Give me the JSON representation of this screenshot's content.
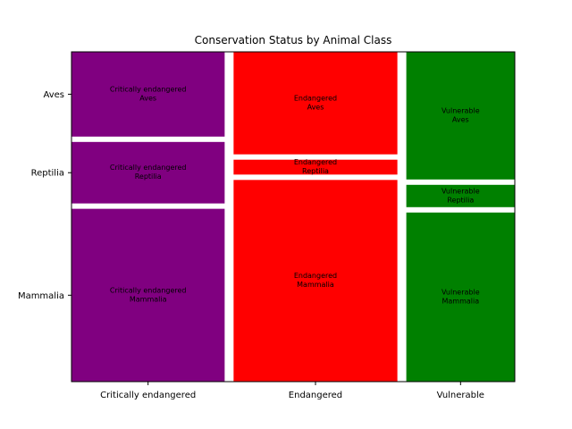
{
  "chart_data": {
    "type": "mosaic",
    "title": "Conservation Status by Animal Class",
    "xlabel": "",
    "ylabel": "",
    "x_categories": [
      "Critically endangered",
      "Endangered",
      "Vulnerable"
    ],
    "y_categories": [
      "Mammalia",
      "Reptilia",
      "Aves"
    ],
    "y_tick_labels": [
      "Aves",
      "Reptilia",
      "Mammalia"
    ],
    "colors": {
      "Critically endangered": "#800080",
      "Endangered": "#ff0000",
      "Vulnerable": "#008000"
    },
    "column_proportions": [
      0.36,
      0.385,
      0.255
    ],
    "cells": [
      {
        "x": "Critically endangered",
        "y": "Mammalia",
        "proportion": 0.52,
        "label": [
          "Critically endangered",
          "Mammalia"
        ]
      },
      {
        "x": "Critically endangered",
        "y": "Reptilia",
        "proportion": 0.185,
        "label": [
          "Critically endangered",
          "Reptilia"
        ]
      },
      {
        "x": "Critically endangered",
        "y": "Aves",
        "proportion": 0.255,
        "label": [
          "Critically endangered",
          "Aves"
        ]
      },
      {
        "x": "Endangered",
        "y": "Mammalia",
        "proportion": 0.61,
        "label": [
          "Endangered",
          "Mammalia"
        ]
      },
      {
        "x": "Endangered",
        "y": "Reptilia",
        "proportion": 0.045,
        "label": [
          "Endangered",
          "Reptilia"
        ]
      },
      {
        "x": "Endangered",
        "y": "Aves",
        "proportion": 0.31,
        "label": [
          "Endangered",
          "Aves"
        ]
      },
      {
        "x": "Vulnerable",
        "y": "Mammalia",
        "proportion": 0.53,
        "label": [
          "Vulnerable",
          "Mammalia"
        ]
      },
      {
        "x": "Vulnerable",
        "y": "Reptilia",
        "proportion": 0.07,
        "label": [
          "Vulnerable",
          "Reptilia"
        ]
      },
      {
        "x": "Vulnerable",
        "y": "Aves",
        "proportion": 0.4,
        "label": [
          "Vulnerable",
          "Aves"
        ]
      }
    ],
    "grid": false,
    "legend": "none"
  }
}
